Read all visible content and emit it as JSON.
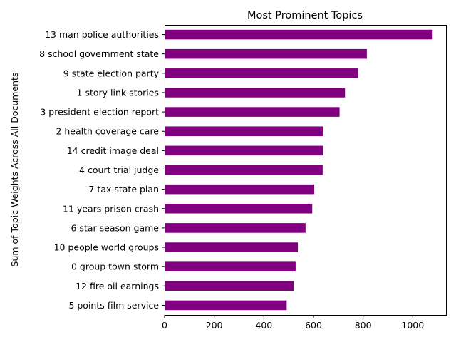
{
  "chart_data": {
    "type": "bar",
    "orientation": "horizontal",
    "title": "Most Prominent Topics",
    "xlabel": "",
    "ylabel": "Sum of Topic Weights Across All Documents",
    "bar_color": "#800080",
    "xlim": [
      0,
      1134
    ],
    "xticks": [
      0,
      200,
      400,
      600,
      800,
      1000
    ],
    "grid": false,
    "legend": "none",
    "categories": [
      "13 man police authorities",
      "8 school government state",
      "9 state election party",
      "1 story link stories",
      "3 president election report",
      "2 health coverage care",
      "14 credit image deal",
      "4 court trial judge",
      "7 tax state plan",
      "11 years prison crash",
      "6 star season game",
      "10 people world groups",
      "0 group town storm",
      "12 fire oil earnings",
      "5 points film service"
    ],
    "values": [
      1080,
      815,
      780,
      727,
      705,
      640,
      640,
      637,
      603,
      595,
      568,
      537,
      528,
      520,
      492
    ]
  }
}
